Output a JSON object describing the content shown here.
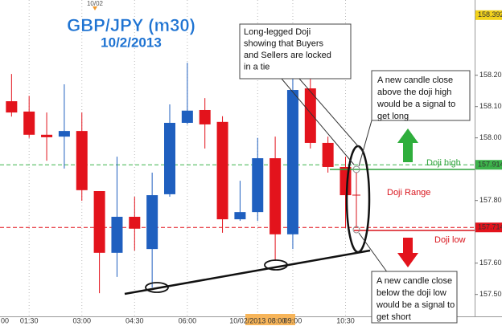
{
  "chart_data": {
    "type": "candlestick",
    "title": "GBP/JPY (m30)",
    "subtitle": "10/2/2013",
    "categories": [
      "00",
      null,
      "01:30",
      null,
      null,
      "03:00",
      null,
      null,
      "04:30",
      null,
      null,
      "06:00",
      null,
      null,
      null,
      "10/02/2013 08:00",
      null,
      "09:00",
      null,
      null,
      "10:30",
      null
    ],
    "series": {
      "open": [
        null,
        158.117,
        158.084,
        158.01,
        158.004,
        158.022,
        157.83,
        157.633,
        157.748,
        157.645,
        157.82,
        158.048,
        158.089,
        158.051,
        157.74,
        157.763,
        157.935,
        157.692,
        158.158,
        157.984,
        157.907,
        null
      ],
      "high": [
        null,
        158.204,
        158.134,
        158.081,
        158.171,
        158.081,
        157.83,
        157.94,
        157.812,
        157.889,
        158.107,
        158.24,
        158.127,
        158.069,
        157.863,
        158.0,
        158.004,
        158.286,
        158.235,
        158.004,
        157.94,
        null
      ],
      "low": [
        null,
        158.068,
        158.0,
        157.927,
        157.902,
        157.799,
        157.504,
        157.556,
        157.64,
        157.522,
        157.812,
        158.043,
        157.966,
        157.697,
        157.735,
        157.735,
        157.607,
        157.645,
        157.966,
        157.889,
        157.712,
        null
      ],
      "close": [
        null,
        158.081,
        158.01,
        158.002,
        158.022,
        157.833,
        157.633,
        157.748,
        157.71,
        157.817,
        158.048,
        158.087,
        158.043,
        157.74,
        157.763,
        157.935,
        157.692,
        158.153,
        157.984,
        157.907,
        157.817,
        null
      ]
    },
    "up_color": "#1f5fbf",
    "down_color": "#e3131c",
    "ylim": [
      157.43,
      158.43
    ],
    "yticks": [
      {
        "value": 157.5,
        "label": "157.50"
      },
      {
        "value": 157.6,
        "label": "157.60"
      },
      {
        "value": 157.8,
        "label": "157.80"
      },
      {
        "value": 158.0,
        "label": "158.00"
      },
      {
        "value": 158.1,
        "label": "158.10"
      },
      {
        "value": 158.2,
        "label": "158.20"
      }
    ],
    "levels": [
      {
        "value": 158.392,
        "label": "158.392",
        "color": "#f2d21b",
        "line": false
      },
      {
        "value": 157.914,
        "label": "157.914",
        "color": "#3cb34a",
        "line": true
      },
      {
        "value": 157.714,
        "label": "157.714",
        "color": "#e3131c",
        "line": true
      }
    ],
    "annotations": {
      "date_marker": "10/02",
      "doji_callout": [
        "Long-legged Doji",
        "showing that Buyers",
        "and Sellers are locked",
        "in a tie"
      ],
      "long_note": [
        "A new candle close",
        "above the doji high",
        "would be a signal to",
        "get long"
      ],
      "short_note": [
        "A new candle close",
        "below the doji low",
        "would be a signal to",
        "get short"
      ],
      "doji_high": "Doji high",
      "doji_range": "Doji Range",
      "doji_low": "Doji low"
    }
  }
}
